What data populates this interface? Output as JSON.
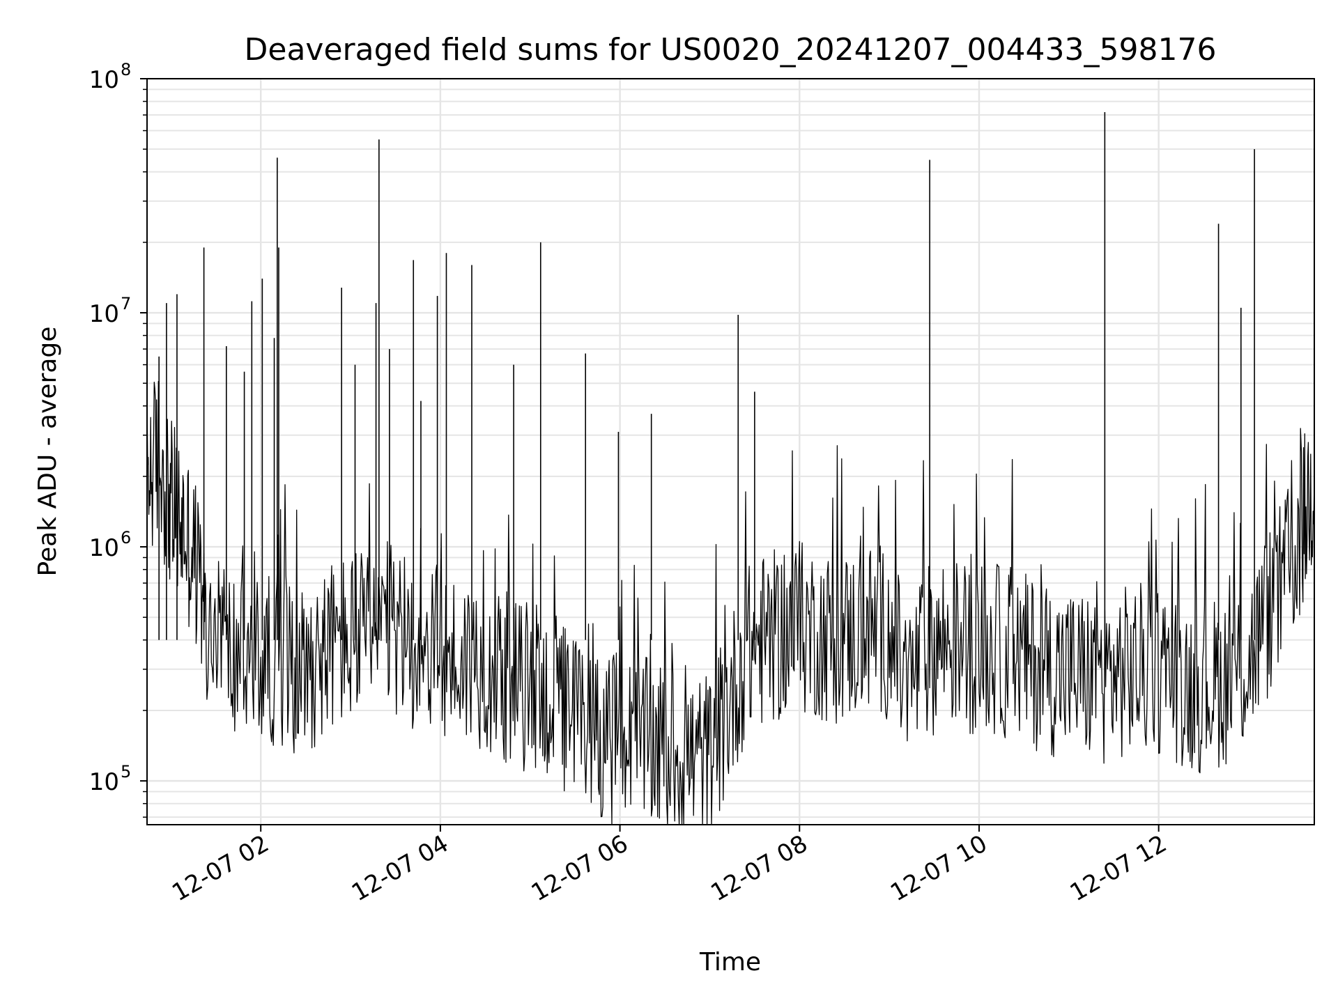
{
  "chart_data": {
    "type": "line",
    "title": "Deaveraged field sums for US0020_20241207_004433_598176",
    "xlabel": "Time",
    "ylabel": "Peak ADU - average",
    "y_scale": "log",
    "ylim": [
      65000,
      100000000
    ],
    "xlim": [
      "2024-12-07 00:44",
      "2024-12-07 13:44"
    ],
    "grid": true,
    "line_color": "#000000",
    "grid_color": "#e5e5e5",
    "x_ticks": [
      {
        "value": "2024-12-07 02:00",
        "label": "12-07 02"
      },
      {
        "value": "2024-12-07 04:00",
        "label": "12-07 04"
      },
      {
        "value": "2024-12-07 06:00",
        "label": "12-07 06"
      },
      {
        "value": "2024-12-07 08:00",
        "label": "12-07 08"
      },
      {
        "value": "2024-12-07 10:00",
        "label": "12-07 10"
      },
      {
        "value": "2024-12-07 12:00",
        "label": "12-07 12"
      }
    ],
    "y_ticks": [
      {
        "value": 100000,
        "base": "10",
        "exp": "5"
      },
      {
        "value": 1000000,
        "base": "10",
        "exp": "6"
      },
      {
        "value": 10000000,
        "base": "10",
        "exp": "7"
      },
      {
        "value": 100000000,
        "base": "10",
        "exp": "8"
      }
    ],
    "series": [
      {
        "x": [
          "2024-12-07 00:44",
          "2024-12-07 00:52",
          "2024-12-07 01:00",
          "2024-12-07 01:08",
          "2024-12-07 01:16",
          "2024-12-07 01:24",
          "2024-12-07 01:36",
          "2024-12-07 01:48",
          "2024-12-07 02:00",
          "2024-12-07 02:12",
          "2024-12-07 02:24",
          "2024-12-07 02:36",
          "2024-12-07 02:48",
          "2024-12-07 03:00",
          "2024-12-07 03:12",
          "2024-12-07 03:24",
          "2024-12-07 03:36",
          "2024-12-07 03:48",
          "2024-12-07 04:00",
          "2024-12-07 04:12",
          "2024-12-07 04:24",
          "2024-12-07 04:36",
          "2024-12-07 04:48",
          "2024-12-07 05:00",
          "2024-12-07 05:12",
          "2024-12-07 05:24",
          "2024-12-07 05:36",
          "2024-12-07 05:48",
          "2024-12-07 06:00",
          "2024-12-07 06:12",
          "2024-12-07 06:24",
          "2024-12-07 06:36",
          "2024-12-07 06:48",
          "2024-12-07 07:00",
          "2024-12-07 07:12",
          "2024-12-07 07:24",
          "2024-12-07 07:36",
          "2024-12-07 07:48",
          "2024-12-07 08:00",
          "2024-12-07 08:12",
          "2024-12-07 08:24",
          "2024-12-07 08:36",
          "2024-12-07 08:48",
          "2024-12-07 09:00",
          "2024-12-07 09:12",
          "2024-12-07 09:24",
          "2024-12-07 09:36",
          "2024-12-07 09:48",
          "2024-12-07 10:00",
          "2024-12-07 10:12",
          "2024-12-07 10:24",
          "2024-12-07 10:36",
          "2024-12-07 10:48",
          "2024-12-07 11:00",
          "2024-12-07 11:12",
          "2024-12-07 11:24",
          "2024-12-07 11:36",
          "2024-12-07 11:48",
          "2024-12-07 12:00",
          "2024-12-07 12:12",
          "2024-12-07 12:24",
          "2024-12-07 12:36",
          "2024-12-07 12:48",
          "2024-12-07 13:00",
          "2024-12-07 13:12",
          "2024-12-07 13:24",
          "2024-12-07 13:36",
          "2024-12-07 13:44"
        ],
        "y": [
          2000000,
          2500000,
          1500000,
          1200000,
          900000,
          400000,
          350000,
          330000,
          320000,
          340000,
          300000,
          330000,
          380000,
          400000,
          420000,
          450000,
          400000,
          380000,
          350000,
          320000,
          330000,
          300000,
          260000,
          250000,
          230000,
          200000,
          170000,
          160000,
          150000,
          145000,
          140000,
          130000,
          125000,
          125000,
          200000,
          350000,
          400000,
          420000,
          450000,
          430000,
          400000,
          420000,
          450000,
          430000,
          250000,
          350000,
          400000,
          380000,
          370000,
          360000,
          340000,
          320000,
          300000,
          290000,
          280000,
          280000,
          290000,
          300000,
          300000,
          280000,
          250000,
          260000,
          280000,
          320000,
          500000,
          700000,
          1200000,
          2000000
        ]
      }
    ],
    "spikes": [
      {
        "x": "2024-12-07 00:52",
        "y": 6500000
      },
      {
        "x": "2024-12-07 00:57",
        "y": 11000000
      },
      {
        "x": "2024-12-07 01:04",
        "y": 12000000
      },
      {
        "x": "2024-12-07 01:22",
        "y": 19000000
      },
      {
        "x": "2024-12-07 01:37",
        "y": 7200000
      },
      {
        "x": "2024-12-07 01:49",
        "y": 5600000
      },
      {
        "x": "2024-12-07 01:54",
        "y": 11200000
      },
      {
        "x": "2024-12-07 02:01",
        "y": 14000000
      },
      {
        "x": "2024-12-07 02:09",
        "y": 7800000
      },
      {
        "x": "2024-12-07 02:11",
        "y": 46000000
      },
      {
        "x": "2024-12-07 02:12",
        "y": 19000000
      },
      {
        "x": "2024-12-07 02:54",
        "y": 12800000
      },
      {
        "x": "2024-12-07 03:03",
        "y": 6000000
      },
      {
        "x": "2024-12-07 03:17",
        "y": 11000000
      },
      {
        "x": "2024-12-07 03:19",
        "y": 55000000
      },
      {
        "x": "2024-12-07 03:26",
        "y": 7000000
      },
      {
        "x": "2024-12-07 03:42",
        "y": 16800000
      },
      {
        "x": "2024-12-07 03:47",
        "y": 4200000
      },
      {
        "x": "2024-12-07 03:58",
        "y": 11800000
      },
      {
        "x": "2024-12-07 04:04",
        "y": 18000000
      },
      {
        "x": "2024-12-07 04:21",
        "y": 16000000
      },
      {
        "x": "2024-12-07 04:49",
        "y": 6000000
      },
      {
        "x": "2024-12-07 05:07",
        "y": 20000000
      },
      {
        "x": "2024-12-07 05:37",
        "y": 6700000
      },
      {
        "x": "2024-12-07 05:59",
        "y": 3100000
      },
      {
        "x": "2024-12-07 06:21",
        "y": 3700000
      },
      {
        "x": "2024-12-07 07:19",
        "y": 9800000
      },
      {
        "x": "2024-12-07 07:30",
        "y": 4600000
      },
      {
        "x": "2024-12-07 09:27",
        "y": 45000000
      },
      {
        "x": "2024-12-07 11:24",
        "y": 72000000
      },
      {
        "x": "2024-12-07 12:40",
        "y": 24000000
      },
      {
        "x": "2024-12-07 12:55",
        "y": 10500000
      },
      {
        "x": "2024-12-07 13:04",
        "y": 50000000
      }
    ]
  }
}
